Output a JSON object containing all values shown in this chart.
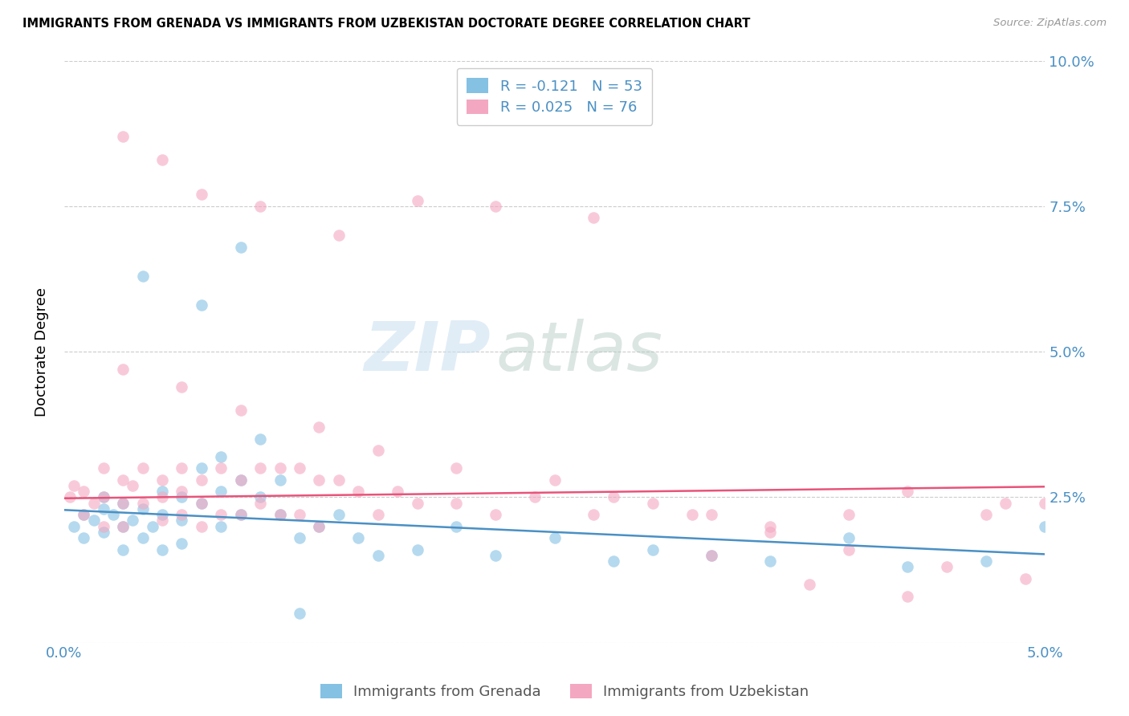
{
  "title": "IMMIGRANTS FROM GRENADA VS IMMIGRANTS FROM UZBEKISTAN DOCTORATE DEGREE CORRELATION CHART",
  "source": "Source: ZipAtlas.com",
  "ylabel": "Doctorate Degree",
  "xmin": 0.0,
  "xmax": 0.05,
  "ymin": 0.0,
  "ymax": 0.1,
  "yticks": [
    0.0,
    0.025,
    0.05,
    0.075,
    0.1
  ],
  "ytick_labels": [
    "",
    "2.5%",
    "5.0%",
    "7.5%",
    "10.0%"
  ],
  "watermark_zip": "ZIP",
  "watermark_atlas": "atlas",
  "legend_r1": "R = -0.121",
  "legend_n1": "N = 53",
  "legend_r2": "R = 0.025",
  "legend_n2": "N = 76",
  "color_blue": "#85c1e3",
  "color_pink": "#f4a7c0",
  "line_color_blue": "#4a90c4",
  "line_color_pink": "#e8547a",
  "grenada_x": [
    0.0005,
    0.001,
    0.001,
    0.0015,
    0.002,
    0.002,
    0.002,
    0.0025,
    0.003,
    0.003,
    0.003,
    0.0035,
    0.004,
    0.004,
    0.0045,
    0.005,
    0.005,
    0.005,
    0.006,
    0.006,
    0.006,
    0.007,
    0.007,
    0.008,
    0.008,
    0.008,
    0.009,
    0.009,
    0.01,
    0.01,
    0.011,
    0.011,
    0.012,
    0.013,
    0.014,
    0.015,
    0.016,
    0.018,
    0.02,
    0.022,
    0.025,
    0.028,
    0.03,
    0.033,
    0.036,
    0.04,
    0.043,
    0.047,
    0.05,
    0.004,
    0.007,
    0.009,
    0.012
  ],
  "grenada_y": [
    0.02,
    0.022,
    0.018,
    0.021,
    0.025,
    0.023,
    0.019,
    0.022,
    0.024,
    0.02,
    0.016,
    0.021,
    0.023,
    0.018,
    0.02,
    0.026,
    0.022,
    0.016,
    0.025,
    0.021,
    0.017,
    0.03,
    0.024,
    0.032,
    0.026,
    0.02,
    0.028,
    0.022,
    0.035,
    0.025,
    0.028,
    0.022,
    0.018,
    0.02,
    0.022,
    0.018,
    0.015,
    0.016,
    0.02,
    0.015,
    0.018,
    0.014,
    0.016,
    0.015,
    0.014,
    0.018,
    0.013,
    0.014,
    0.02,
    0.063,
    0.058,
    0.068,
    0.005
  ],
  "uzbekistan_x": [
    0.0003,
    0.0005,
    0.001,
    0.001,
    0.0015,
    0.002,
    0.002,
    0.002,
    0.003,
    0.003,
    0.003,
    0.0035,
    0.004,
    0.004,
    0.005,
    0.005,
    0.005,
    0.006,
    0.006,
    0.006,
    0.007,
    0.007,
    0.007,
    0.008,
    0.008,
    0.009,
    0.009,
    0.01,
    0.01,
    0.011,
    0.011,
    0.012,
    0.012,
    0.013,
    0.013,
    0.014,
    0.015,
    0.016,
    0.017,
    0.018,
    0.02,
    0.022,
    0.024,
    0.027,
    0.03,
    0.033,
    0.036,
    0.04,
    0.043,
    0.047,
    0.05,
    0.003,
    0.006,
    0.009,
    0.013,
    0.016,
    0.02,
    0.025,
    0.028,
    0.032,
    0.036,
    0.04,
    0.045,
    0.048,
    0.003,
    0.005,
    0.007,
    0.01,
    0.014,
    0.018,
    0.022,
    0.027,
    0.033,
    0.038,
    0.043,
    0.049
  ],
  "uzbekistan_y": [
    0.025,
    0.027,
    0.026,
    0.022,
    0.024,
    0.03,
    0.025,
    0.02,
    0.028,
    0.024,
    0.02,
    0.027,
    0.03,
    0.024,
    0.028,
    0.025,
    0.021,
    0.03,
    0.026,
    0.022,
    0.028,
    0.024,
    0.02,
    0.03,
    0.022,
    0.028,
    0.022,
    0.03,
    0.024,
    0.03,
    0.022,
    0.03,
    0.022,
    0.028,
    0.02,
    0.028,
    0.026,
    0.022,
    0.026,
    0.024,
    0.024,
    0.022,
    0.025,
    0.022,
    0.024,
    0.022,
    0.02,
    0.022,
    0.026,
    0.022,
    0.024,
    0.047,
    0.044,
    0.04,
    0.037,
    0.033,
    0.03,
    0.028,
    0.025,
    0.022,
    0.019,
    0.016,
    0.013,
    0.024,
    0.087,
    0.083,
    0.077,
    0.075,
    0.07,
    0.076,
    0.075,
    0.073,
    0.015,
    0.01,
    0.008,
    0.011
  ],
  "grenada_line_x": [
    0.0,
    0.05
  ],
  "grenada_line_y": [
    0.0228,
    0.0152
  ],
  "uzbekistan_line_x": [
    0.0,
    0.05
  ],
  "uzbekistan_line_y": [
    0.0248,
    0.0268
  ]
}
